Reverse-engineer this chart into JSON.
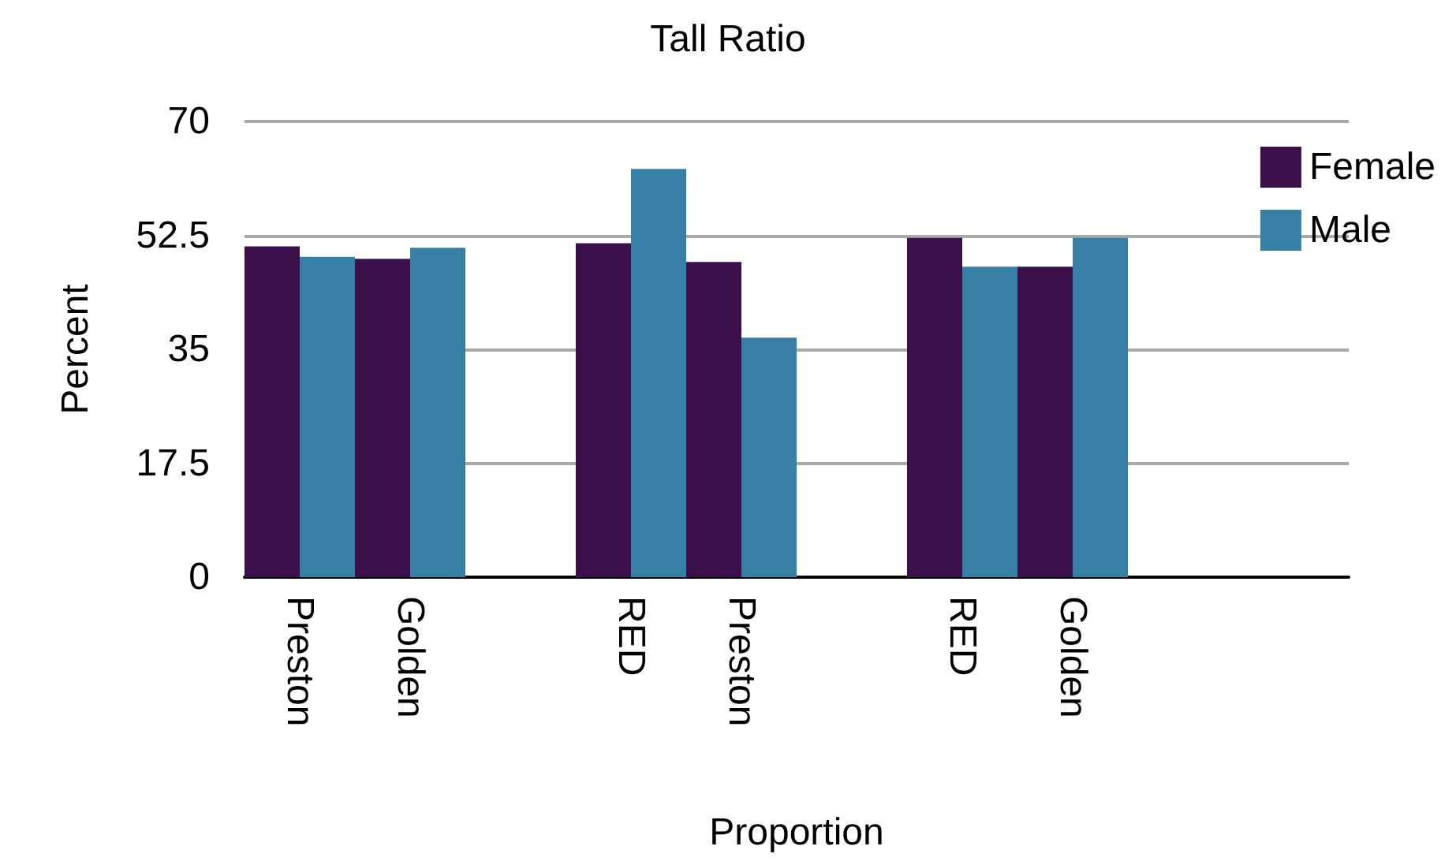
{
  "chart_data": {
    "type": "bar",
    "title": "Tall Ratio",
    "xlabel": "Proportion",
    "ylabel": "Percent",
    "categories": [
      "Preston",
      "Golden",
      null,
      "RED",
      "Preston",
      null,
      "RED",
      "Golden",
      null,
      null
    ],
    "series": [
      {
        "name": "Female",
        "color": "#3b0f4a",
        "values": [
          50.8,
          48.9,
          null,
          51.3,
          48.4,
          null,
          52.1,
          47.7,
          null,
          null
        ]
      },
      {
        "name": "Male",
        "color": "#3580a4",
        "values": [
          49.2,
          50.6,
          null,
          62.7,
          36.8,
          null,
          47.7,
          52.1,
          null,
          null
        ]
      }
    ],
    "ylim": [
      0,
      70
    ],
    "yticks": [
      0,
      17.5,
      35,
      52.5,
      70
    ],
    "grid": "y",
    "legend": "top right"
  }
}
